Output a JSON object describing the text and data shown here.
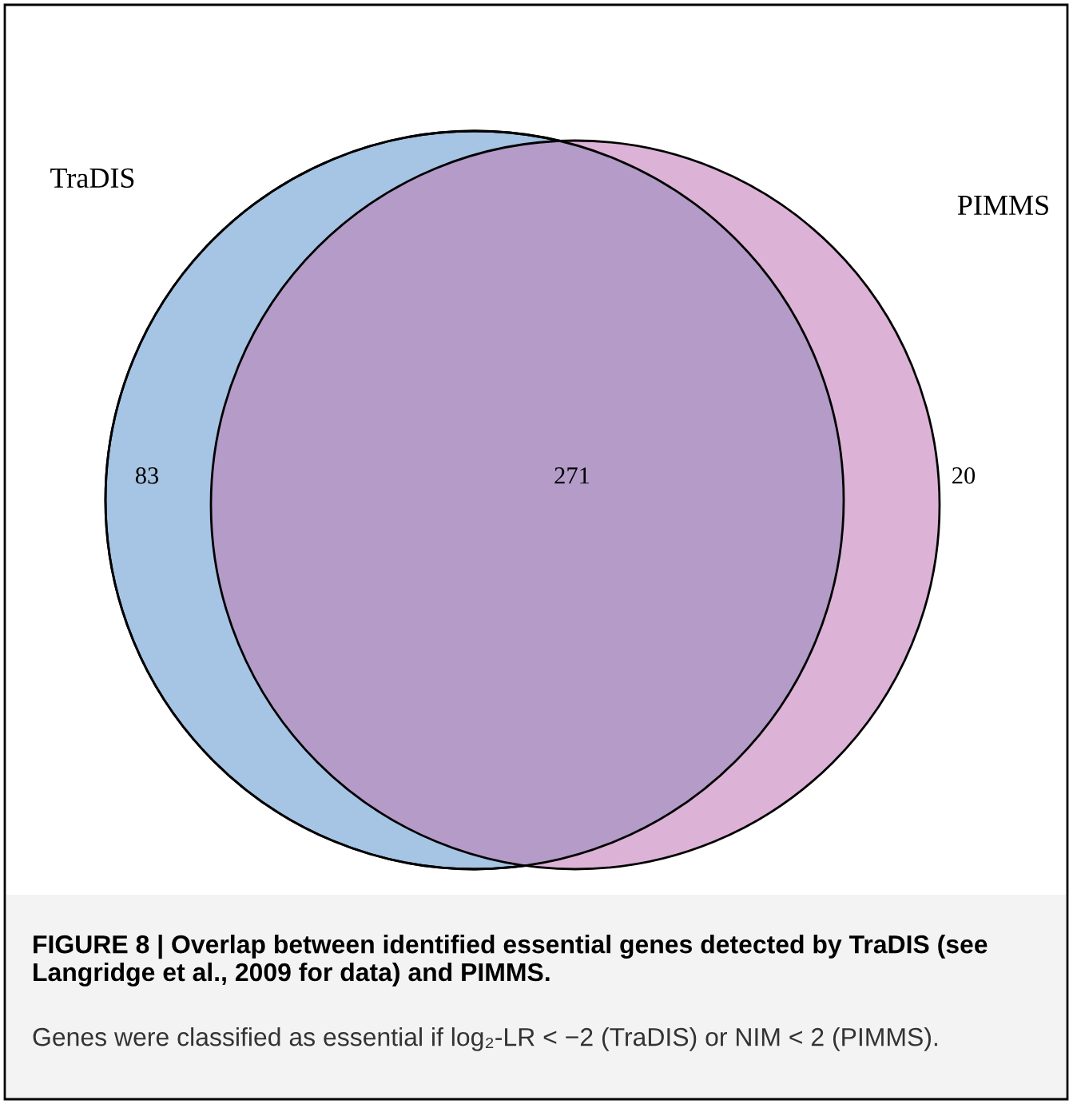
{
  "chart_data": {
    "type": "other",
    "categories": [
      null,
      null,
      null
    ],
    "values": [
      83,
      271,
      20
    ],
    "data_labels": true,
    "colors": [
      "#a6c4e3",
      "#b49bc8",
      "#dcb3d6"
    ],
    "annotations": [
      "TraDIS",
      "PIMMS",
      "FIGURE 8 | Overlap between identified essential genes detected by TraDIS (see Langridge et al., 2009 for data) and PIMMS.",
      "Genes were classified as essential if log₂-LR < −2 (TraDIS) or NIM < 2 (PIMMS)."
    ]
  }
}
